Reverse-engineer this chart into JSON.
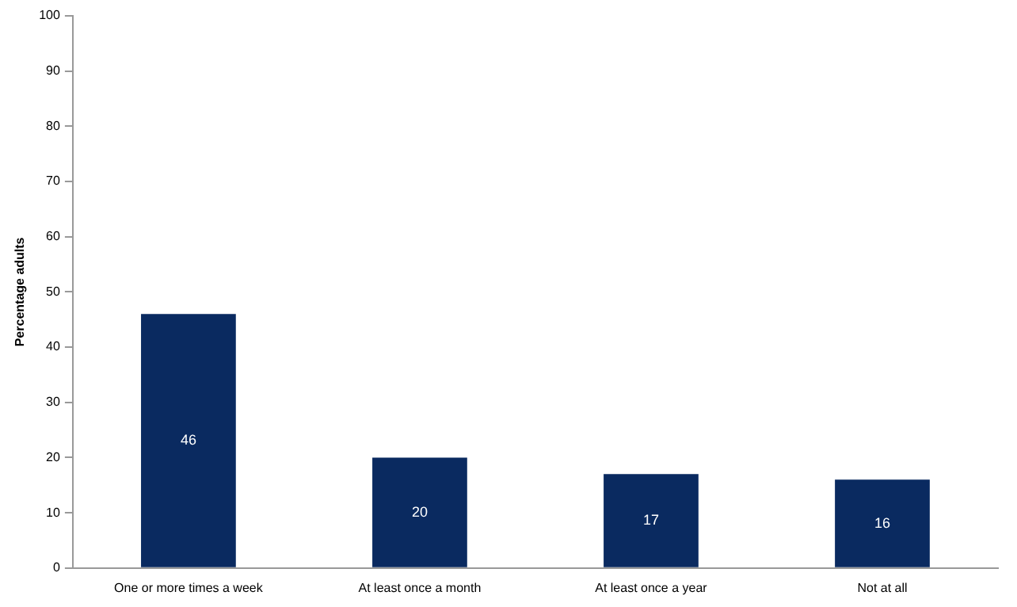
{
  "chart_data": {
    "type": "bar",
    "ylabel": "Percentage adults",
    "categories": [
      "One or more times a week",
      "At least once a month",
      "At least once a year",
      "Not at all"
    ],
    "values": [
      46,
      20,
      17,
      16
    ],
    "color": "#0a2a60",
    "ylim": [
      0,
      100
    ],
    "yticks": [
      0,
      10,
      20,
      30,
      40,
      50,
      60,
      70,
      80,
      90,
      100
    ],
    "grid": false,
    "legend": false,
    "data_labels": true
  }
}
